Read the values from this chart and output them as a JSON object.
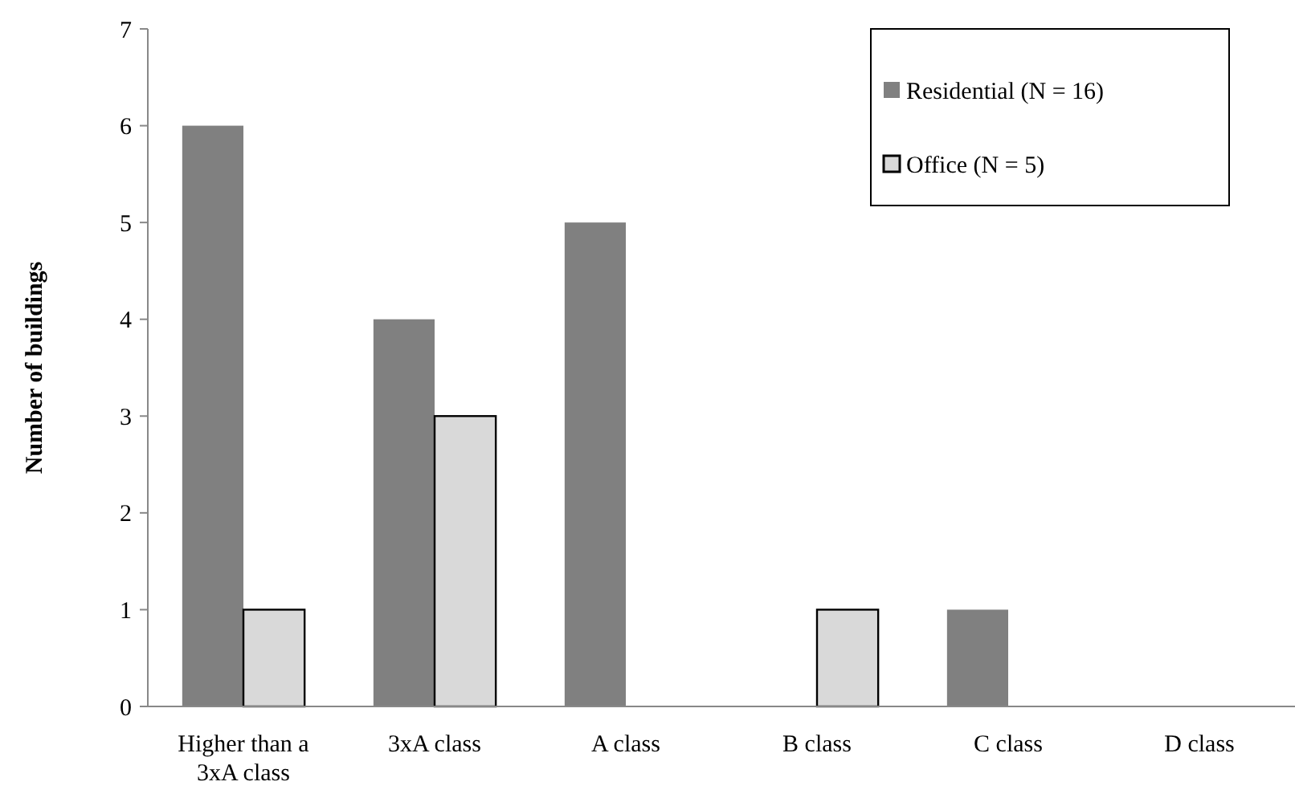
{
  "chart_data": {
    "type": "bar",
    "ylabel": "Number of buildings",
    "categories": [
      "Higher than a 3xA class",
      "3xA class",
      "A class",
      "B class",
      "C class",
      "D class"
    ],
    "series": [
      {
        "name": "Residential (N = 16)",
        "color": "#808080",
        "values": [
          6,
          4,
          5,
          0,
          1,
          0
        ]
      },
      {
        "name": "Office (N = 5)",
        "color": "#d9d9d9",
        "values": [
          1,
          3,
          0,
          1,
          0,
          0
        ]
      }
    ],
    "ylim": [
      0,
      7
    ],
    "yticks": [
      0,
      1,
      2,
      3,
      4,
      5,
      6,
      7
    ],
    "legend": "top right"
  }
}
